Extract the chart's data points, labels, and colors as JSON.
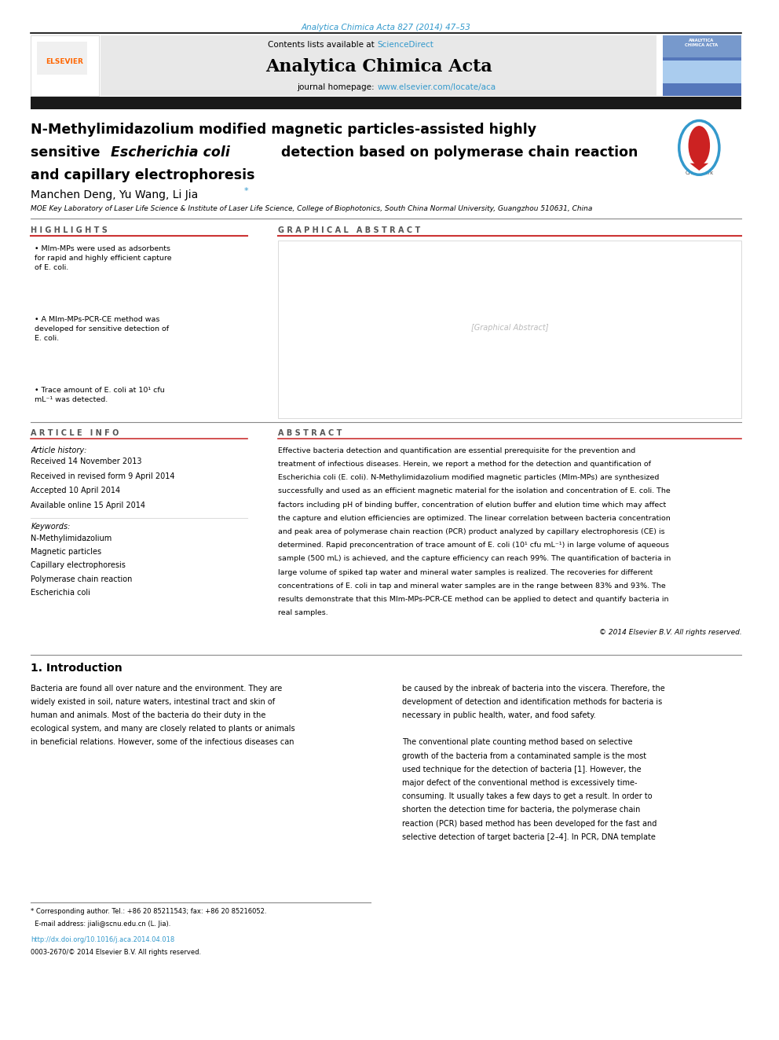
{
  "page_width": 9.92,
  "page_height": 13.23,
  "bg_color": "#ffffff",
  "top_citation": "Analytica Chimica Acta 827 (2014) 47–53",
  "top_citation_color": "#3399cc",
  "journal_name": "Analytica Chimica Acta",
  "contents_link_color": "#3399cc",
  "journal_homepage_link_color": "#3399cc",
  "header_bg": "#e8e8e8",
  "black_bar_color": "#1a1a1a",
  "affiliation": "MOE Key Laboratory of Laser Life Science & Institute of Laser Life Science, College of Biophotonics, South China Normal University, Guangzhou 510631, China",
  "highlights_title": "H I G H L I G H T S",
  "graphical_abstract_title": "G R A P H I C A L   A B S T R A C T",
  "article_info_title": "A R T I C L E   I N F O",
  "article_history_label": "Article history:",
  "received": "Received 14 November 2013",
  "revised": "Received in revised form 9 April 2014",
  "accepted": "Accepted 10 April 2014",
  "available": "Available online 15 April 2014",
  "keywords_label": "Keywords:",
  "keywords": [
    "N-Methylimidazolium",
    "Magnetic particles",
    "Capillary electrophoresis",
    "Polymerase chain reaction",
    "Escherichia coli"
  ],
  "abstract_title": "A B S T R A C T",
  "copyright_text": "© 2014 Elsevier B.V. All rights reserved.",
  "intro_title": "1. Introduction",
  "intro_doi": "http://dx.doi.org/10.1016/j.aca.2014.04.018",
  "intro_issn": "0003-2670/© 2014 Elsevier B.V. All rights reserved.",
  "abstract_lines": [
    "Effective bacteria detection and quantification are essential prerequisite for the prevention and",
    "treatment of infectious diseases. Herein, we report a method for the detection and quantification of",
    "Escherichia coli (E. coli). N-Methylimidazolium modified magnetic particles (MIm-MPs) are synthesized",
    "successfully and used as an efficient magnetic material for the isolation and concentration of E. coli. The",
    "factors including pH of binding buffer, concentration of elution buffer and elution time which may affect",
    "the capture and elution efficiencies are optimized. The linear correlation between bacteria concentration",
    "and peak area of polymerase chain reaction (PCR) product analyzed by capillary electrophoresis (CE) is",
    "determined. Rapid preconcentration of trace amount of E. coli (10¹ cfu mL⁻¹) in large volume of aqueous",
    "sample (500 mL) is achieved, and the capture efficiency can reach 99%. The quantification of bacteria in",
    "large volume of spiked tap water and mineral water samples is realized. The recoveries for different",
    "concentrations of E. coli in tap and mineral water samples are in the range between 83% and 93%. The",
    "results demonstrate that this MIm-MPs-PCR-CE method can be applied to detect and quantify bacteria in",
    "real samples."
  ],
  "intro_col1_lines": [
    "Bacteria are found all over nature and the environment. They are",
    "widely existed in soil, nature waters, intestinal tract and skin of",
    "human and animals. Most of the bacteria do their duty in the",
    "ecological system, and many are closely related to plants or animals",
    "in beneficial relations. However, some of the infectious diseases can"
  ],
  "intro_col2_lines": [
    "be caused by the inbreak of bacteria into the viscera. Therefore, the",
    "development of detection and identification methods for bacteria is",
    "necessary in public health, water, and food safety.",
    "",
    "The conventional plate counting method based on selective",
    "growth of the bacteria from a contaminated sample is the most",
    "used technique for the detection of bacteria [1]. However, the",
    "major defect of the conventional method is excessively time-",
    "consuming. It usually takes a few days to get a result. In order to",
    "shorten the detection time for bacteria, the polymerase chain",
    "reaction (PCR) based method has been developed for the fast and",
    "selective detection of target bacteria [2–4]. In PCR, DNA template"
  ],
  "highlights_lines": [
    "MIm-MPs were used as adsorbents\nfor rapid and highly efficient capture\nof E. coli.",
    "A MIm-MPs-PCR-CE method was\ndeveloped for sensitive detection of\nE. coli.",
    "Trace amount of E. coli at 10¹ cfu\nmL⁻¹ was detected."
  ]
}
